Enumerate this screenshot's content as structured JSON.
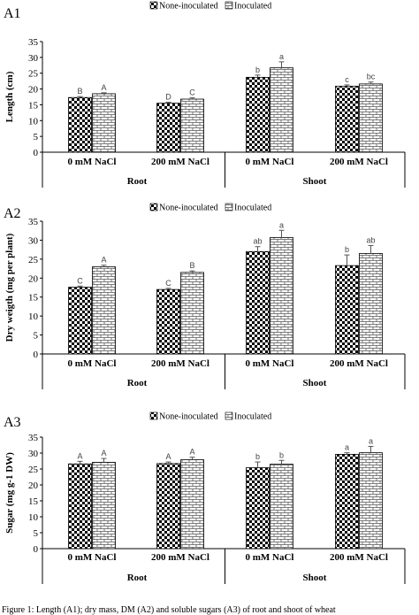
{
  "legend": [
    "None-inoculated",
    "Inoculated"
  ],
  "colors": {
    "axis": "#000000",
    "bar_edge": "#000000",
    "error_bar": "#555555",
    "letters": "#444444"
  },
  "category_labels": [
    "0 mM NaCl",
    "200 mM NaCl",
    "0 mM NaCl",
    "200 mM NaCl"
  ],
  "group_labels": [
    "Root",
    "Shoot"
  ],
  "caption": "Figure 1: Length (A1); dry mass, DM (A2) and soluble sugars (A3) of root and shoot of wheat",
  "chart_data": [
    {
      "type": "bar",
      "panel": "A1",
      "ylabel": "Length (cm)",
      "ylim": [
        0,
        35
      ],
      "yticks": [
        0,
        5,
        10,
        15,
        20,
        25,
        30,
        35
      ],
      "legend_position": "top",
      "categories": [
        "0 mM NaCl",
        "200 mM NaCl",
        "0 mM NaCl",
        "200 mM NaCl"
      ],
      "groups": [
        "Root",
        "Root",
        "Shoot",
        "Shoot"
      ],
      "series": [
        {
          "name": "None-inoculated",
          "values": [
            17.3,
            15.5,
            23.7,
            20.9
          ],
          "errors": [
            0.3,
            0.3,
            0.7,
            0.4
          ],
          "letters": [
            "B",
            "D",
            "b",
            "c"
          ]
        },
        {
          "name": "Inoculated",
          "values": [
            18.5,
            16.8,
            26.7,
            21.6
          ],
          "errors": [
            0.3,
            0.4,
            1.9,
            0.6
          ],
          "letters": [
            "A",
            "C",
            "a",
            "bc"
          ]
        }
      ]
    },
    {
      "type": "bar",
      "panel": "A2",
      "ylabel": "Dry weigth (mg per plant)",
      "ylim": [
        0,
        35
      ],
      "yticks": [
        0,
        5,
        10,
        15,
        20,
        25,
        30,
        35
      ],
      "legend_position": "top",
      "categories": [
        "0 mM NaCl",
        "200 mM NaCl",
        "0 mM NaCl",
        "200 mM NaCl"
      ],
      "groups": [
        "Root",
        "Root",
        "Shoot",
        "Shoot"
      ],
      "series": [
        {
          "name": "None-inoculated",
          "values": [
            17.6,
            17.0,
            27.0,
            23.3
          ],
          "errors": [
            0.3,
            0.3,
            1.3,
            2.8
          ],
          "letters": [
            "C",
            "C",
            "ab",
            "b"
          ]
        },
        {
          "name": "Inoculated",
          "values": [
            23.0,
            21.5,
            30.7,
            26.5
          ],
          "errors": [
            0.4,
            0.4,
            1.9,
            2.1
          ],
          "letters": [
            "A",
            "B",
            "a",
            "ab"
          ]
        }
      ]
    },
    {
      "type": "bar",
      "panel": "A3",
      "ylabel": "Sugar (mg g-1 DW)",
      "ylim": [
        0,
        35
      ],
      "yticks": [
        0,
        5,
        10,
        15,
        20,
        25,
        30,
        35
      ],
      "legend_position": "top",
      "categories": [
        "0 mM NaCl",
        "200 mM NaCl",
        "0 mM NaCl",
        "200 mM NaCl"
      ],
      "groups": [
        "Root",
        "Root",
        "Shoot",
        "Shoot"
      ],
      "series": [
        {
          "name": "None-inoculated",
          "values": [
            26.6,
            26.7,
            25.4,
            29.6
          ],
          "errors": [
            0.8,
            0.5,
            1.8,
            0.5
          ],
          "letters": [
            "A",
            "A",
            "b",
            "a"
          ]
        },
        {
          "name": "Inoculated",
          "values": [
            27.1,
            27.9,
            26.5,
            30.1
          ],
          "errors": [
            1.2,
            0.8,
            1.2,
            2.0
          ],
          "letters": [
            "A",
            "A",
            "b",
            "a"
          ]
        }
      ]
    }
  ]
}
